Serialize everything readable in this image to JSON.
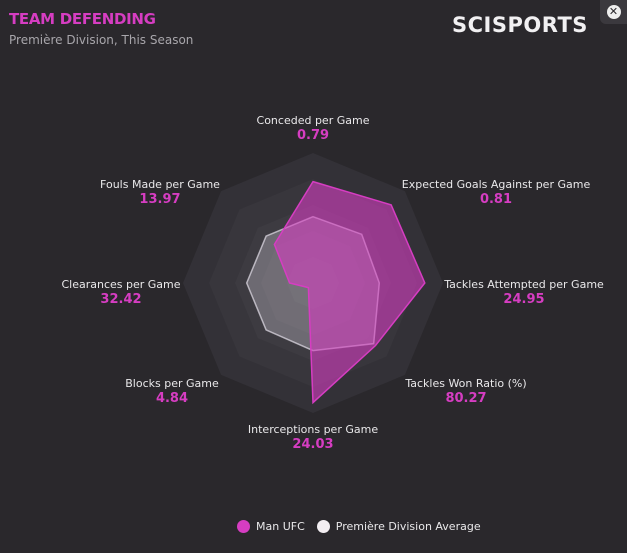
{
  "header": {
    "title": "TEAM DEFENDING",
    "subtitle": "Première Division, This Season",
    "logo": "SCISPORTS",
    "close_icon": "close-icon"
  },
  "colors": {
    "team": "#d63dc2",
    "average": "#f3eef2",
    "accent": "#d63dc2"
  },
  "chart_data": {
    "type": "radar",
    "title": "TEAM DEFENDING",
    "axes": [
      {
        "label": "Conceded per Game",
        "value": "0.79"
      },
      {
        "label": "Expected Goals Against per Game",
        "value": "0.81"
      },
      {
        "label": "Tackles Attempted per Game",
        "value": "24.95"
      },
      {
        "label": "Tackles Won Ratio (%)",
        "value": "80.27"
      },
      {
        "label": "Interceptions per Game",
        "value": "24.03"
      },
      {
        "label": "Blocks per Game",
        "value": "4.84"
      },
      {
        "label": "Clearances per Game",
        "value": "32.42"
      },
      {
        "label": "Fouls Made per Game",
        "value": "13.97"
      }
    ],
    "scale": [
      0,
      1
    ],
    "rings": 5,
    "series": [
      {
        "name": "Man UFC",
        "values": [
          0.78,
          0.85,
          0.86,
          0.68,
          0.92,
          0.05,
          0.18,
          0.42
        ]
      },
      {
        "name": "Première Division Average",
        "values": [
          0.51,
          0.53,
          0.51,
          0.66,
          0.52,
          0.51,
          0.51,
          0.51
        ]
      }
    ],
    "legend": "bottom-center"
  }
}
